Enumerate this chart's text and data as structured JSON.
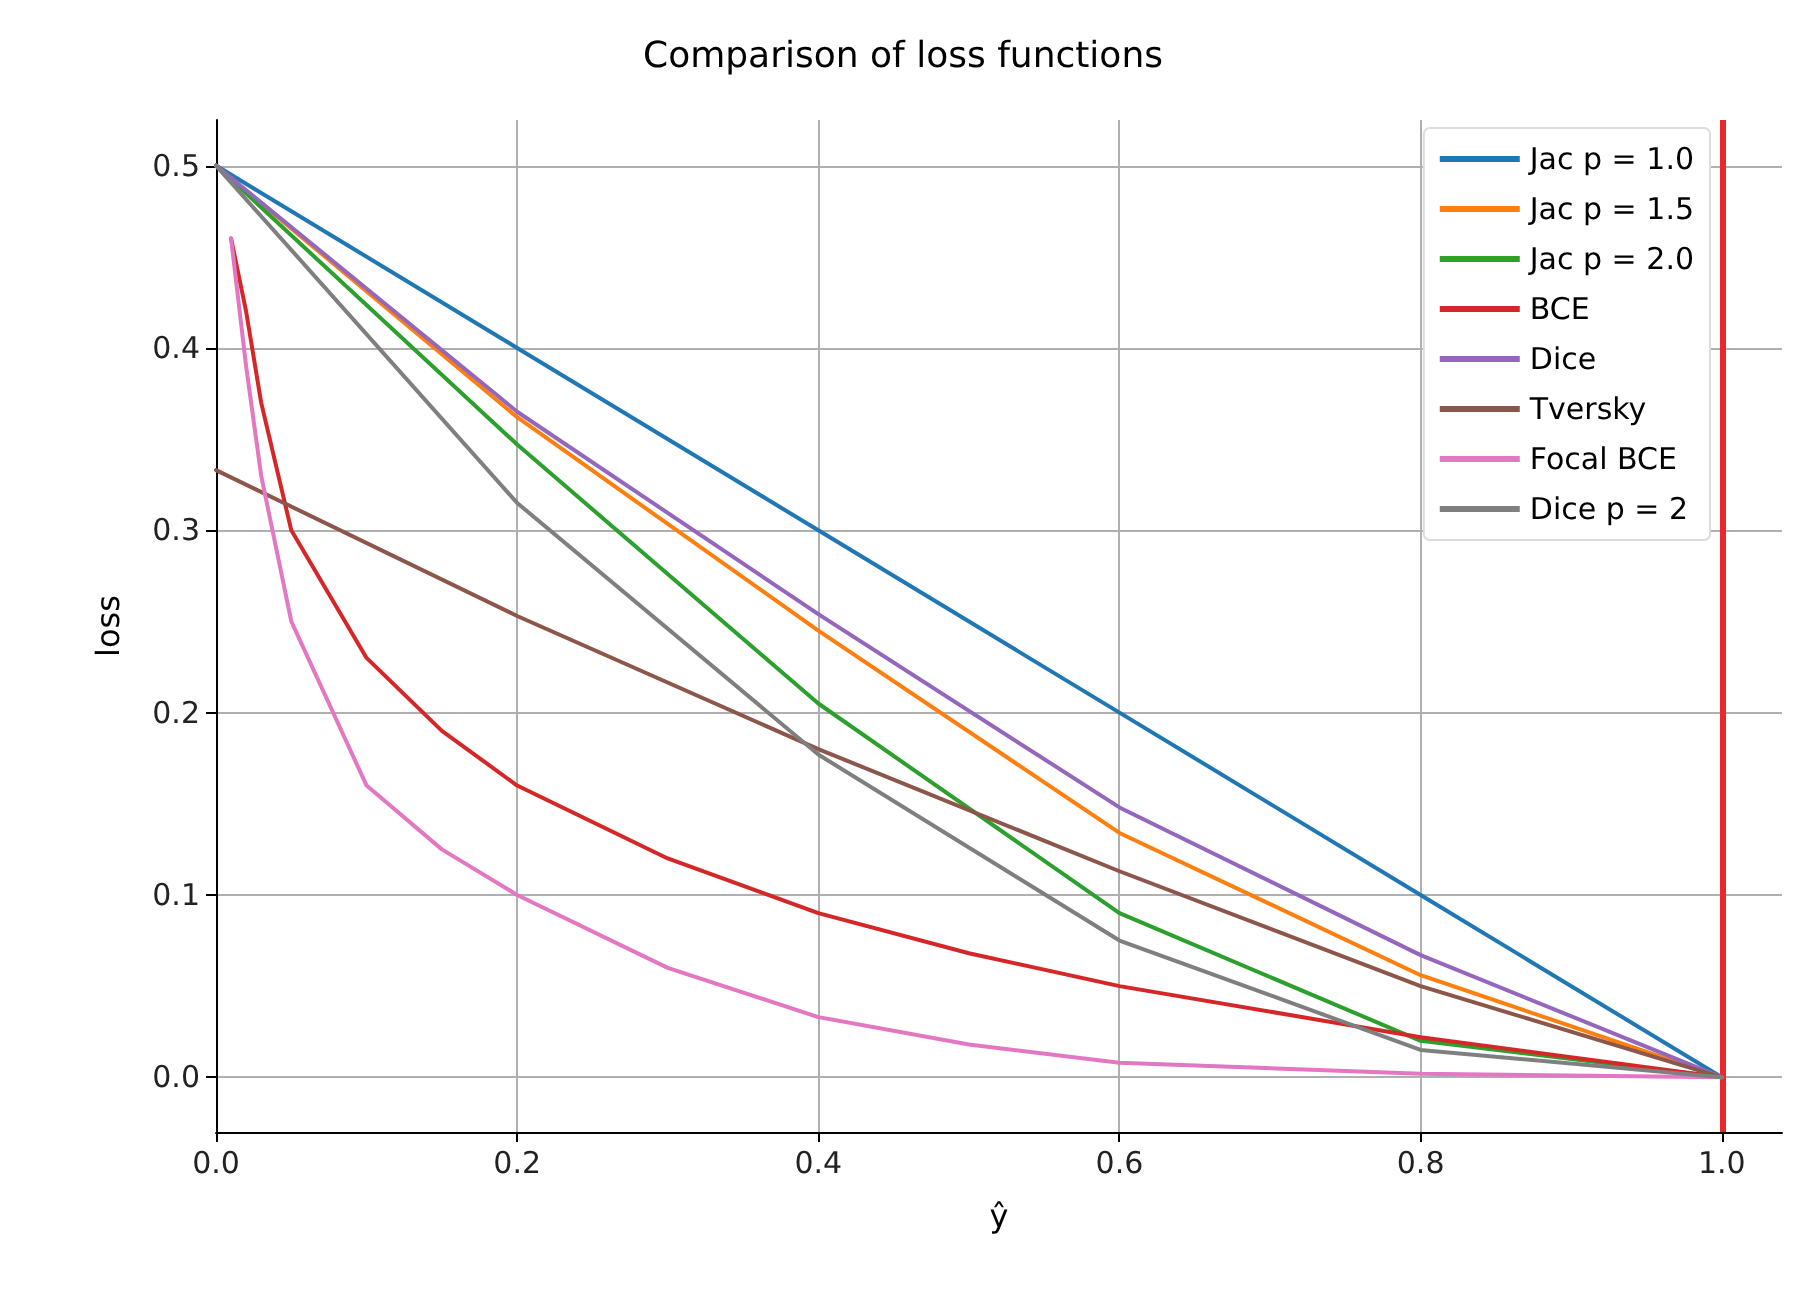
{
  "chart_data": {
    "type": "line",
    "title": "Comparison of loss functions",
    "xlabel": "ŷ",
    "ylabel": "loss",
    "xlim": [
      0,
      1.04
    ],
    "ylim": [
      -0.03,
      0.525
    ],
    "xticks": [
      {
        "value": 0,
        "label": "0.0"
      },
      {
        "value": 0.2,
        "label": "0.2"
      },
      {
        "value": 0.4,
        "label": "0.4"
      },
      {
        "value": 0.6,
        "label": "0.6"
      },
      {
        "value": 0.8,
        "label": "0.8"
      },
      {
        "value": 1,
        "label": "1.0"
      }
    ],
    "yticks": [
      {
        "value": 0,
        "label": "0.0"
      },
      {
        "value": 0.1,
        "label": "0.1"
      },
      {
        "value": 0.2,
        "label": "0.2"
      },
      {
        "value": 0.3,
        "label": "0.3"
      },
      {
        "value": 0.4,
        "label": "0.4"
      },
      {
        "value": 0.5,
        "label": "0.5"
      }
    ],
    "grid": true,
    "legend": "top right",
    "marker": "none",
    "line_style": "solid",
    "ref_lines": [
      {
        "axis": "x",
        "value": 1,
        "color": "#e8282b"
      }
    ],
    "series": [
      {
        "name": "Jac p = 1.0",
        "color": "#1f77b4",
        "x": [
          0,
          0.2,
          0.4,
          0.6,
          0.8,
          1
        ],
        "values": [
          0.5,
          0.4,
          0.3,
          0.2,
          0.1,
          0
        ]
      },
      {
        "name": "Jac p = 1.5",
        "color": "#ff7f0e",
        "x": [
          0,
          0.2,
          0.4,
          0.6,
          0.8,
          1
        ],
        "values": [
          0.5,
          0.362,
          0.245,
          0.134,
          0.056,
          0
        ]
      },
      {
        "name": "Jac p = 2.0",
        "color": "#2ca02c",
        "x": [
          0,
          0.2,
          0.4,
          0.6,
          0.8,
          1
        ],
        "values": [
          0.5,
          0.347,
          0.205,
          0.09,
          0.02,
          0
        ]
      },
      {
        "name": "BCE",
        "color": "#d62728",
        "x": [
          0.01,
          0.02,
          0.03,
          0.05,
          0.1,
          0.15,
          0.2,
          0.3,
          0.4,
          0.5,
          0.6,
          0.8,
          1
        ],
        "values": [
          0.46,
          0.42,
          0.37,
          0.3,
          0.23,
          0.19,
          0.16,
          0.12,
          0.09,
          0.068,
          0.05,
          0.022,
          0
        ]
      },
      {
        "name": "Dice",
        "color": "#9467bd",
        "x": [
          0,
          0.2,
          0.4,
          0.6,
          0.8,
          1
        ],
        "values": [
          0.5,
          0.365,
          0.254,
          0.148,
          0.067,
          0
        ]
      },
      {
        "name": "Tversky",
        "color": "#8c564b",
        "x": [
          0,
          0.2,
          0.4,
          0.6,
          0.8,
          1
        ],
        "values": [
          0.333,
          0.253,
          0.18,
          0.113,
          0.05,
          0
        ]
      },
      {
        "name": "Focal BCE",
        "color": "#e377c2",
        "x": [
          0.01,
          0.02,
          0.03,
          0.05,
          0.1,
          0.15,
          0.2,
          0.3,
          0.4,
          0.5,
          0.6,
          0.8,
          1
        ],
        "values": [
          0.46,
          0.39,
          0.33,
          0.25,
          0.16,
          0.125,
          0.1,
          0.06,
          0.033,
          0.018,
          0.008,
          0.002,
          0
        ]
      },
      {
        "name": "Dice p = 2",
        "color": "#7f7f7f",
        "x": [
          0,
          0.2,
          0.4,
          0.6,
          0.8,
          1
        ],
        "values": [
          0.5,
          0.315,
          0.177,
          0.075,
          0.015,
          0
        ]
      }
    ]
  }
}
